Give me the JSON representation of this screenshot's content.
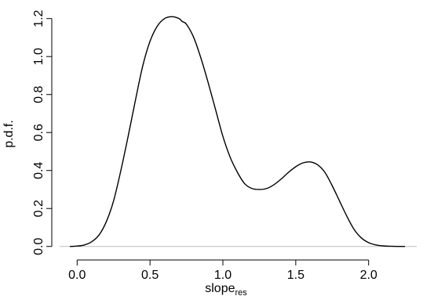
{
  "chart_data": {
    "type": "line",
    "xlabel": "slope",
    "xlabel_subscript": "res",
    "ylabel": "p.d.f.",
    "xlim": [
      -0.12,
      2.33
    ],
    "ylim": [
      -0.03,
      1.24
    ],
    "xticks": [
      0.0,
      0.5,
      1.0,
      1.5,
      2.0
    ],
    "xtick_labels": [
      "0.0",
      "0.5",
      "1.0",
      "1.5",
      "2.0"
    ],
    "yticks": [
      0.0,
      0.2,
      0.4,
      0.6,
      0.8,
      1.0,
      1.2
    ],
    "ytick_labels": [
      "0.0",
      "0.2",
      "0.4",
      "0.6",
      "0.8",
      "1.0",
      "1.2"
    ],
    "baseline": 0.0,
    "grid": false,
    "legend": "none",
    "series": [
      {
        "color": "#000000",
        "x": [
          -0.05,
          0.0,
          0.05,
          0.1,
          0.15,
          0.2,
          0.25,
          0.3,
          0.35,
          0.4,
          0.45,
          0.5,
          0.55,
          0.6,
          0.65,
          0.7,
          0.72,
          0.75,
          0.8,
          0.85,
          0.9,
          0.95,
          1.0,
          1.05,
          1.1,
          1.15,
          1.2,
          1.25,
          1.3,
          1.35,
          1.4,
          1.45,
          1.5,
          1.55,
          1.6,
          1.65,
          1.7,
          1.75,
          1.8,
          1.85,
          1.9,
          1.95,
          2.0,
          2.05,
          2.1,
          2.15,
          2.2,
          2.25
        ],
        "y": [
          0.0,
          0.002,
          0.008,
          0.025,
          0.06,
          0.13,
          0.24,
          0.4,
          0.58,
          0.77,
          0.95,
          1.08,
          1.16,
          1.2,
          1.21,
          1.2,
          1.185,
          1.17,
          1.1,
          0.99,
          0.86,
          0.72,
          0.58,
          0.47,
          0.39,
          0.33,
          0.305,
          0.3,
          0.305,
          0.325,
          0.355,
          0.39,
          0.42,
          0.44,
          0.445,
          0.43,
          0.39,
          0.32,
          0.24,
          0.16,
          0.09,
          0.045,
          0.02,
          0.008,
          0.003,
          0.001,
          0.0,
          0.0
        ]
      }
    ]
  }
}
